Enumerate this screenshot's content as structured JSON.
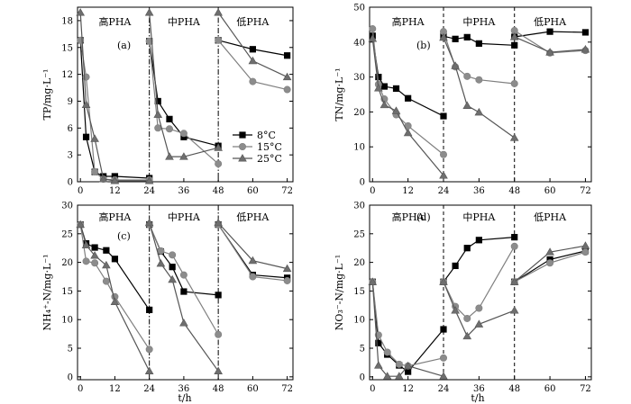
{
  "x_axis_label": "t/h",
  "series_styles": [
    {
      "name": "8°C",
      "marker": "square",
      "color": "#000000",
      "fill": "#000000"
    },
    {
      "name": "15°C",
      "marker": "circle",
      "color": "#7f7f7f",
      "fill": "#8c8c8c"
    },
    {
      "name": "25°C",
      "marker": "triangle",
      "color": "#555555",
      "fill": "#6e6e6e"
    }
  ],
  "chart_data": [
    {
      "type": "line",
      "panel_label": "(a)",
      "ylabel": "TP/mg·L⁻¹",
      "xlim": [
        -1,
        74
      ],
      "ylim": [
        0,
        19.5
      ],
      "xticks": [
        0,
        12,
        24,
        36,
        48,
        60,
        72
      ],
      "yticks": [
        0,
        3,
        6,
        9,
        12,
        15,
        18
      ],
      "phase_lines": [
        {
          "x": 24,
          "style": "dashdot"
        },
        {
          "x": 48,
          "style": "dashdot"
        }
      ],
      "phase_labels": [
        "高PHA",
        "中PHA",
        "低PHA"
      ],
      "legend": "center-right",
      "series": [
        {
          "name": "8°C",
          "segments": [
            {
              "x": [
                0,
                2,
                5,
                8,
                12
              ],
              "y": [
                15.8,
                5.0,
                1.1,
                0.6,
                0.6
              ]
            },
            {
              "x": [
                12,
                24
              ],
              "y": [
                0.6,
                0.4
              ]
            },
            {
              "x": [
                24,
                27,
                31,
                36,
                48
              ],
              "y": [
                15.7,
                9.0,
                7.0,
                5.0,
                4.0
              ]
            },
            {
              "x": [
                48,
                60,
                72
              ],
              "y": [
                15.8,
                14.8,
                14.1
              ]
            }
          ]
        },
        {
          "name": "15°C",
          "segments": [
            {
              "x": [
                0,
                2,
                5,
                8,
                12
              ],
              "y": [
                15.8,
                11.7,
                1.1,
                0.3,
                0.2
              ]
            },
            {
              "x": [
                12,
                24
              ],
              "y": [
                0.2,
                0.2
              ]
            },
            {
              "x": [
                24,
                27,
                31,
                36,
                48
              ],
              "y": [
                15.7,
                6.0,
                5.9,
                5.4,
                2.0
              ]
            },
            {
              "x": [
                48,
                60,
                72
              ],
              "y": [
                15.8,
                11.2,
                10.3
              ]
            }
          ]
        },
        {
          "name": "25°C",
          "segments": [
            {
              "x": [
                0,
                2,
                5,
                8,
                12
              ],
              "y": [
                18.9,
                8.6,
                4.8,
                0.3,
                0.1
              ]
            },
            {
              "x": [
                12,
                24
              ],
              "y": [
                0.1,
                0.1
              ]
            },
            {
              "x": [
                24,
                27,
                31,
                36,
                48
              ],
              "y": [
                18.9,
                7.5,
                2.8,
                2.8,
                3.8
              ]
            },
            {
              "x": [
                48,
                60,
                72
              ],
              "y": [
                18.9,
                13.5,
                11.7
              ]
            }
          ]
        }
      ]
    },
    {
      "type": "line",
      "panel_label": "(b)",
      "ylabel": "TN/mg·L⁻¹",
      "xlim": [
        -1,
        74
      ],
      "ylim": [
        0,
        50
      ],
      "xticks": [
        0,
        12,
        24,
        36,
        48,
        60,
        72
      ],
      "yticks": [
        0,
        10,
        20,
        30,
        40,
        50
      ],
      "phase_lines": [
        {
          "x": 24,
          "style": "dashed"
        },
        {
          "x": 48,
          "style": "dashed"
        }
      ],
      "phase_labels": [
        "高PHA",
        "中PHA",
        "低PHA"
      ],
      "series": [
        {
          "name": "8°C",
          "segments": [
            {
              "x": [
                0,
                2,
                4,
                8,
                12,
                24
              ],
              "y": [
                41.8,
                30.0,
                27.3,
                26.7,
                23.9,
                18.8
              ]
            },
            {
              "x": [
                24,
                28,
                32,
                36,
                48
              ],
              "y": [
                41.7,
                40.9,
                41.4,
                39.6,
                39.1
              ]
            },
            {
              "x": [
                48,
                60,
                72
              ],
              "y": [
                41.5,
                43.0,
                42.8
              ]
            }
          ]
        },
        {
          "name": "15°C",
          "segments": [
            {
              "x": [
                0,
                2,
                4,
                8,
                12,
                24
              ],
              "y": [
                43.8,
                27.9,
                23.7,
                19.2,
                16.0,
                7.8
              ]
            },
            {
              "x": [
                24,
                28,
                32,
                36,
                48
              ],
              "y": [
                43.0,
                32.9,
                30.2,
                29.2,
                28.1
              ]
            },
            {
              "x": [
                48,
                60,
                72
              ],
              "y": [
                43.3,
                36.9,
                37.6
              ]
            }
          ]
        },
        {
          "name": "25°C",
          "segments": [
            {
              "x": [
                0,
                2,
                4,
                8,
                12,
                24
              ],
              "y": [
                41.0,
                26.8,
                22.0,
                20.3,
                14.0,
                1.8
              ]
            },
            {
              "x": [
                24,
                28,
                32,
                36,
                48
              ],
              "y": [
                41.3,
                33.2,
                21.8,
                19.9,
                12.6
              ]
            },
            {
              "x": [
                48,
                60,
                72
              ],
              "y": [
                41.5,
                37.1,
                37.9
              ]
            }
          ]
        }
      ]
    },
    {
      "type": "line",
      "panel_label": "(c)",
      "ylabel": "NH₄⁺-N/mg·L⁻¹",
      "xlim": [
        -1,
        74
      ],
      "ylim": [
        -0.5,
        30
      ],
      "xticks": [
        0,
        12,
        24,
        36,
        48,
        60,
        72
      ],
      "yticks": [
        0,
        5,
        10,
        15,
        20,
        25,
        30
      ],
      "phase_lines": [
        {
          "x": 24,
          "style": "dashdot"
        },
        {
          "x": 48,
          "style": "dashdot"
        }
      ],
      "phase_labels": [
        "高PHA",
        "中PHA",
        "低PHA"
      ],
      "series": [
        {
          "name": "8°C",
          "segments": [
            {
              "x": [
                0,
                2,
                5,
                9,
                12,
                24
              ],
              "y": [
                26.6,
                23.3,
                22.6,
                22.1,
                20.6,
                11.7
              ]
            },
            {
              "x": [
                24,
                28,
                32,
                36,
                48
              ],
              "y": [
                26.6,
                21.9,
                19.2,
                14.9,
                14.3
              ]
            },
            {
              "x": [
                48,
                60,
                72
              ],
              "y": [
                26.6,
                17.8,
                17.3
              ]
            }
          ]
        },
        {
          "name": "15°C",
          "segments": [
            {
              "x": [
                0,
                2,
                5,
                9,
                12,
                24
              ],
              "y": [
                26.6,
                20.2,
                19.9,
                16.7,
                14.0,
                4.8
              ]
            },
            {
              "x": [
                24,
                28,
                32,
                36,
                48
              ],
              "y": [
                26.6,
                22.0,
                21.3,
                17.8,
                7.4
              ]
            },
            {
              "x": [
                48,
                60,
                72
              ],
              "y": [
                26.6,
                17.5,
                16.8
              ]
            }
          ]
        },
        {
          "name": "25°C",
          "segments": [
            {
              "x": [
                0,
                2,
                5,
                9,
                12,
                24
              ],
              "y": [
                26.6,
                23.0,
                21.2,
                19.5,
                13.1,
                1.0
              ]
            },
            {
              "x": [
                24,
                28,
                32,
                36,
                48
              ],
              "y": [
                26.9,
                19.8,
                17.0,
                9.4,
                1.0
              ]
            },
            {
              "x": [
                48,
                60,
                72
              ],
              "y": [
                26.9,
                20.3,
                18.9
              ]
            }
          ]
        }
      ]
    },
    {
      "type": "line",
      "panel_label": "(d)",
      "ylabel": "NO₃⁻-N/mg·L⁻¹",
      "xlim": [
        -1,
        74
      ],
      "ylim": [
        -0.5,
        30
      ],
      "xticks": [
        0,
        12,
        24,
        36,
        48,
        60,
        72
      ],
      "yticks": [
        0,
        5,
        10,
        15,
        20,
        25,
        30
      ],
      "phase_lines": [
        {
          "x": 24,
          "style": "dashed"
        },
        {
          "x": 48,
          "style": "dashed"
        }
      ],
      "phase_labels": [
        "高PHA",
        "中PHA",
        "低PHA"
      ],
      "series": [
        {
          "name": "8°C",
          "segments": [
            {
              "x": [
                0,
                2,
                5,
                9,
                12,
                24
              ],
              "y": [
                16.6,
                5.9,
                3.9,
                2.0,
                0.9,
                8.3
              ]
            },
            {
              "x": [
                24,
                28,
                32,
                36,
                48
              ],
              "y": [
                16.6,
                19.4,
                22.5,
                23.9,
                24.4
              ]
            },
            {
              "x": [
                48,
                60,
                72
              ],
              "y": [
                16.6,
                20.5,
                22.0
              ]
            }
          ]
        },
        {
          "name": "15°C",
          "segments": [
            {
              "x": [
                0,
                2,
                5,
                9,
                12,
                24
              ],
              "y": [
                16.6,
                7.3,
                4.3,
                2.2,
                1.9,
                3.3
              ]
            },
            {
              "x": [
                24,
                28,
                32,
                36,
                48
              ],
              "y": [
                16.6,
                12.3,
                10.2,
                12.0,
                22.8
              ]
            },
            {
              "x": [
                48,
                60,
                72
              ],
              "y": [
                16.6,
                19.9,
                21.8
              ]
            }
          ]
        },
        {
          "name": "25°C",
          "segments": [
            {
              "x": [
                0,
                2,
                5,
                9,
                12,
                24
              ],
              "y": [
                16.6,
                2.0,
                0.1,
                0.1,
                1.9,
                0.1
              ]
            },
            {
              "x": [
                24,
                28,
                32,
                36,
                48
              ],
              "y": [
                16.6,
                11.6,
                7.1,
                9.2,
                11.6
              ]
            },
            {
              "x": [
                48,
                60,
                72
              ],
              "y": [
                16.6,
                21.8,
                22.9
              ]
            }
          ]
        }
      ]
    }
  ]
}
